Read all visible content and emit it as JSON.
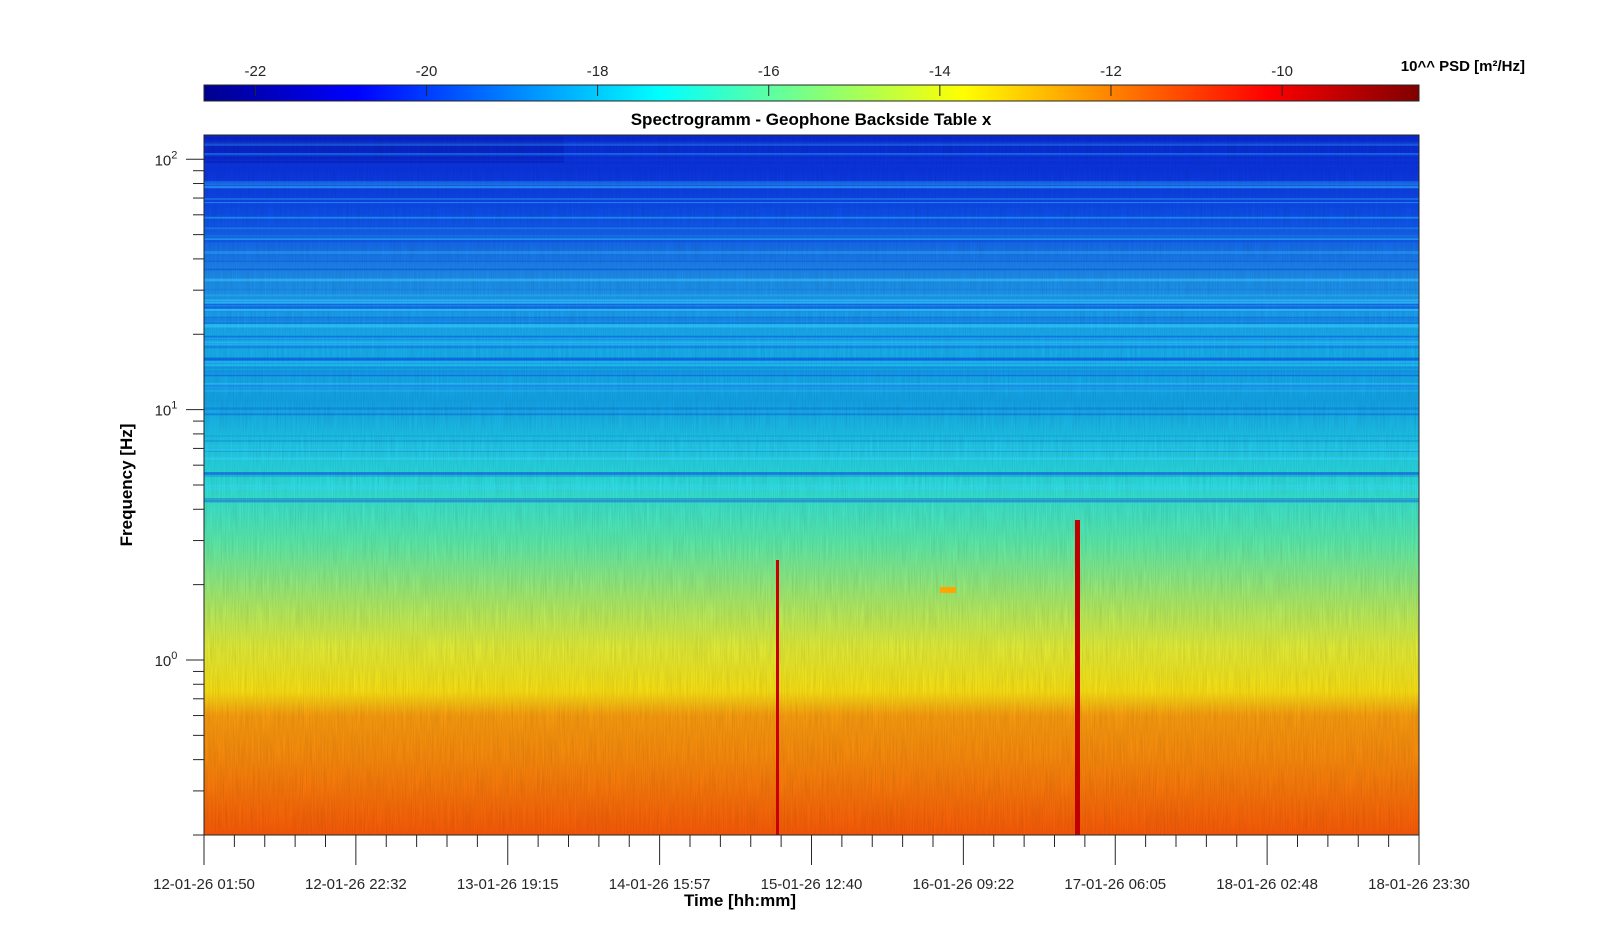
{
  "chart_data": {
    "type": "heatmap",
    "title": "Spectrogramm - Geophone Backside Table x",
    "xlabel": "Time [hh:mm]",
    "ylabel": "Frequency [Hz]",
    "x_tick_labels": [
      "12-01-26 01:50",
      "12-01-26 22:32",
      "13-01-26 19:15",
      "14-01-26 15:57",
      "15-01-26 12:40",
      "16-01-26 09:22",
      "17-01-26 06:05",
      "18-01-26 02:48",
      "18-01-26 23:30"
    ],
    "y_scale": "log",
    "y_range": [
      0.2,
      125
    ],
    "y_ticks": [
      {
        "value": 1,
        "base": "10",
        "exp": "0"
      },
      {
        "value": 10,
        "base": "10",
        "exp": "1"
      },
      {
        "value": 100,
        "base": "10",
        "exp": "2"
      }
    ],
    "colorbar": {
      "colormap": "jet",
      "unit_label": "10^^ PSD [m²/Hz]",
      "range": [
        -22.6,
        -8.4
      ],
      "ticks": [
        "-22",
        "-20",
        "-18",
        "-16",
        "-14",
        "-12",
        "-10"
      ],
      "tick_values": [
        -22,
        -20,
        -18,
        -16,
        -14,
        -12,
        -10
      ],
      "location": "top"
    },
    "grid": false
  }
}
